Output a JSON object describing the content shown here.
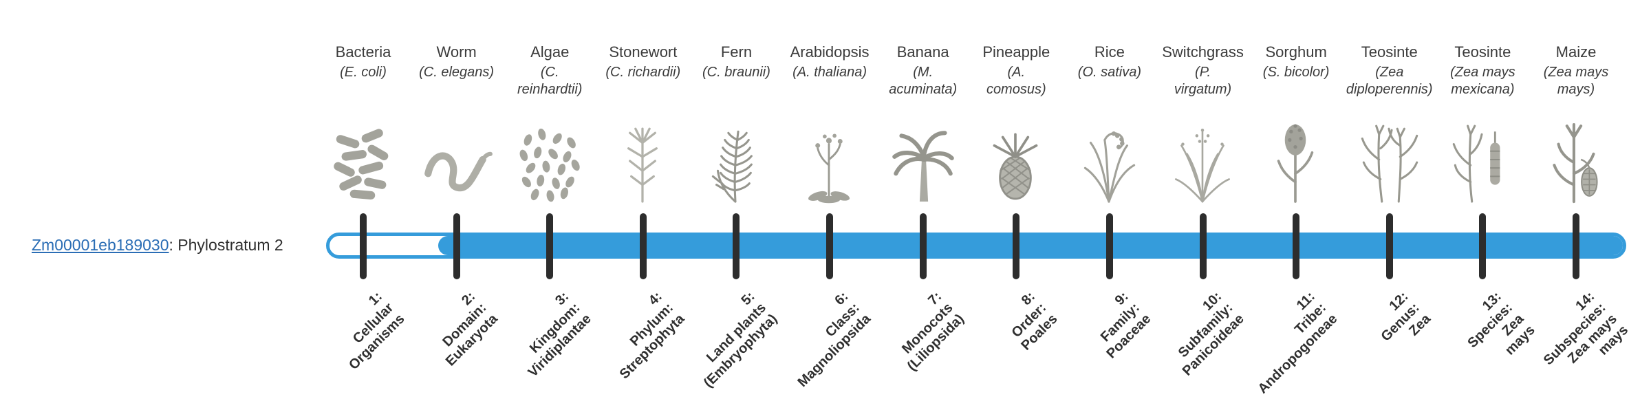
{
  "gene": {
    "id": "Zm00001eb189030",
    "label_suffix": ": Phylostratum 2",
    "link_color": "#2a6db5"
  },
  "bar": {
    "fill_color": "#359CDB",
    "tick_color": "#2d2d2d",
    "filled_from_stratum": 2
  },
  "chart_data": {
    "type": "table",
    "title": "Gene phylostratigraphy map",
    "gene_assignment": "Zm00001eb189030: Phylostratum 2",
    "strata": [
      {
        "number": 1,
        "organism": "Bacteria",
        "sci": [
          "(E. coli)"
        ],
        "icon": "bacteria-icon",
        "label_lines": [
          "1:",
          "Cellular",
          "Organisms"
        ]
      },
      {
        "number": 2,
        "organism": "Worm",
        "sci": [
          "(C. elegans)"
        ],
        "icon": "worm-icon",
        "label_lines": [
          "2:",
          "Domain:",
          "Eukaryota"
        ]
      },
      {
        "number": 3,
        "organism": "Algae",
        "sci": [
          "(C.",
          "reinhardtii)"
        ],
        "icon": "algae-icon",
        "label_lines": [
          "3:",
          "Kingdom:",
          "Viridiplantae"
        ]
      },
      {
        "number": 4,
        "organism": "Stonewort",
        "sci": [
          "(C. richardii)"
        ],
        "icon": "stonewort-icon",
        "label_lines": [
          "4:",
          "Phylum:",
          "Streptophyta"
        ]
      },
      {
        "number": 5,
        "organism": "Fern",
        "sci": [
          "(C. braunii)"
        ],
        "icon": "fern-icon",
        "label_lines": [
          "5:",
          "Land plants",
          "(Embryophyta)"
        ]
      },
      {
        "number": 6,
        "organism": "Arabidopsis",
        "sci": [
          "(A. thaliana)"
        ],
        "icon": "arabidopsis-icon",
        "label_lines": [
          "6:",
          "Class:",
          "Magnoliopsida"
        ]
      },
      {
        "number": 7,
        "organism": "Banana",
        "sci": [
          "(M.",
          "acuminata)"
        ],
        "icon": "banana-icon",
        "label_lines": [
          "7:",
          "Monocots",
          "(Liliopsida)"
        ]
      },
      {
        "number": 8,
        "organism": "Pineapple",
        "sci": [
          "(A.",
          "comosus)"
        ],
        "icon": "pineapple-icon",
        "label_lines": [
          "8:",
          "Order:",
          "Poales"
        ]
      },
      {
        "number": 9,
        "organism": "Rice",
        "sci": [
          "(O. sativa)"
        ],
        "icon": "rice-icon",
        "label_lines": [
          "9:",
          "Family:",
          "Poaceae"
        ]
      },
      {
        "number": 10,
        "organism": "Switchgrass",
        "sci": [
          "(P.",
          "virgatum)"
        ],
        "icon": "switchgrass-icon",
        "label_lines": [
          "10:",
          "Subfamily:",
          "Panicoideae"
        ]
      },
      {
        "number": 11,
        "organism": "Sorghum",
        "sci": [
          "(S. bicolor)"
        ],
        "icon": "sorghum-icon",
        "label_lines": [
          "11:",
          "Tribe:",
          "Andropogoneae"
        ]
      },
      {
        "number": 12,
        "organism": "Teosinte",
        "sci": [
          "(Zea",
          "diploperennis)"
        ],
        "icon": "teosinte-icon",
        "label_lines": [
          "12:",
          "Genus:",
          "Zea"
        ]
      },
      {
        "number": 13,
        "organism": "Teosinte",
        "sci": [
          "(Zea mays",
          "mexicana)"
        ],
        "icon": "teosinte-ear-icon",
        "label_lines": [
          "13:",
          "Species:",
          "Zea",
          "mays"
        ]
      },
      {
        "number": 14,
        "organism": "Maize",
        "sci": [
          "(Zea mays",
          "mays)"
        ],
        "icon": "maize-icon",
        "label_lines": [
          "14:",
          "Subspecies:",
          "Zea mays",
          "mays"
        ]
      }
    ]
  }
}
